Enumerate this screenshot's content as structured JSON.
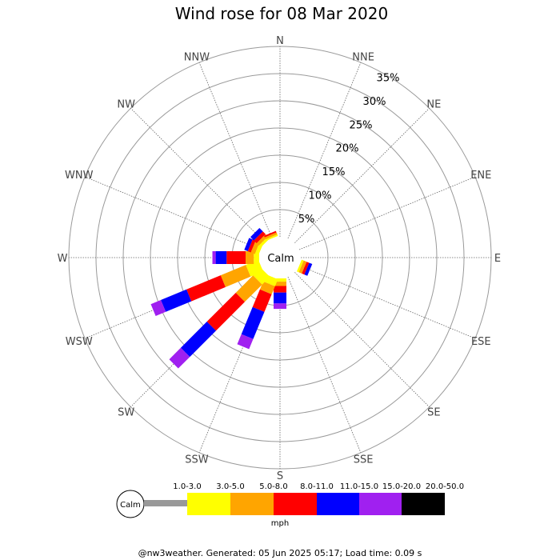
{
  "chart_data": {
    "type": "wind-rose",
    "title": "Wind rose for 08 Mar 2020",
    "directions": [
      "N",
      "NNE",
      "NE",
      "ENE",
      "E",
      "ESE",
      "SE",
      "SSE",
      "S",
      "SSW",
      "SW",
      "WSW",
      "W",
      "WNW",
      "NW",
      "NNW"
    ],
    "ring_labels": [
      "5%",
      "10%",
      "15%",
      "20%",
      "25%",
      "30%",
      "35%"
    ],
    "ring_values": [
      5,
      10,
      15,
      20,
      25,
      30,
      35
    ],
    "rmax": 35,
    "calm_label": "Calm",
    "unit": "mph",
    "bins": [
      {
        "label": "1.0-3.0",
        "color": "#999999"
      },
      {
        "label": "3.0-5.0",
        "color": "#ffff00"
      },
      {
        "label": "5.0-8.0",
        "color": "#ffa500"
      },
      {
        "label": "8.0-11.0",
        "color": "#ff0000"
      },
      {
        "label": "11.0-15.0",
        "color": "#0000ff"
      },
      {
        "label": "15.0-20.0",
        "color": "#a020f0"
      },
      {
        "label": "20.0-50.0",
        "color": "#000000"
      }
    ],
    "series": [
      {
        "direction": "N",
        "values": [
          0,
          0,
          0,
          0,
          0,
          0,
          0
        ]
      },
      {
        "direction": "NNE",
        "values": [
          0,
          0,
          0,
          0,
          0,
          0,
          0
        ]
      },
      {
        "direction": "NE",
        "values": [
          0,
          0,
          0,
          0,
          0,
          0,
          0
        ]
      },
      {
        "direction": "ENE",
        "values": [
          0,
          0,
          0,
          0,
          0,
          0,
          0
        ]
      },
      {
        "direction": "E",
        "values": [
          0,
          0,
          0,
          0,
          0,
          0,
          0
        ]
      },
      {
        "direction": "ESE",
        "values": [
          0,
          0.4,
          0.6,
          0.5,
          0.6,
          0,
          0
        ]
      },
      {
        "direction": "SE",
        "values": [
          0,
          0,
          0,
          0,
          0,
          0,
          0
        ]
      },
      {
        "direction": "SSE",
        "values": [
          0,
          0,
          0,
          0,
          0,
          0,
          0
        ]
      },
      {
        "direction": "S",
        "values": [
          0,
          0.6,
          0.8,
          1.2,
          2.0,
          1.0,
          0
        ]
      },
      {
        "direction": "SSW",
        "values": [
          0,
          1.4,
          1.6,
          3.5,
          5.4,
          2.0,
          0
        ]
      },
      {
        "direction": "SW",
        "values": [
          0,
          2.0,
          4.5,
          7.5,
          6.8,
          3.0,
          0
        ]
      },
      {
        "direction": "WSW",
        "values": [
          0,
          2.5,
          5.0,
          6.8,
          5.1,
          2.0,
          0
        ]
      },
      {
        "direction": "W",
        "values": [
          0,
          1.0,
          1.5,
          3.5,
          2.0,
          0.6,
          0
        ]
      },
      {
        "direction": "WNW",
        "values": [
          0,
          0.7,
          0.8,
          0.6,
          0.7,
          0,
          0
        ]
      },
      {
        "direction": "NW",
        "values": [
          0,
          0.5,
          0.6,
          0.7,
          0.9,
          0,
          0
        ]
      },
      {
        "direction": "NNW",
        "values": [
          0,
          0.3,
          0.4,
          0.3,
          0,
          0,
          0
        ]
      }
    ]
  },
  "footer": "@nw3weather. Generated: 05 Jun 2025 05:17; Load time: 0.09 s"
}
